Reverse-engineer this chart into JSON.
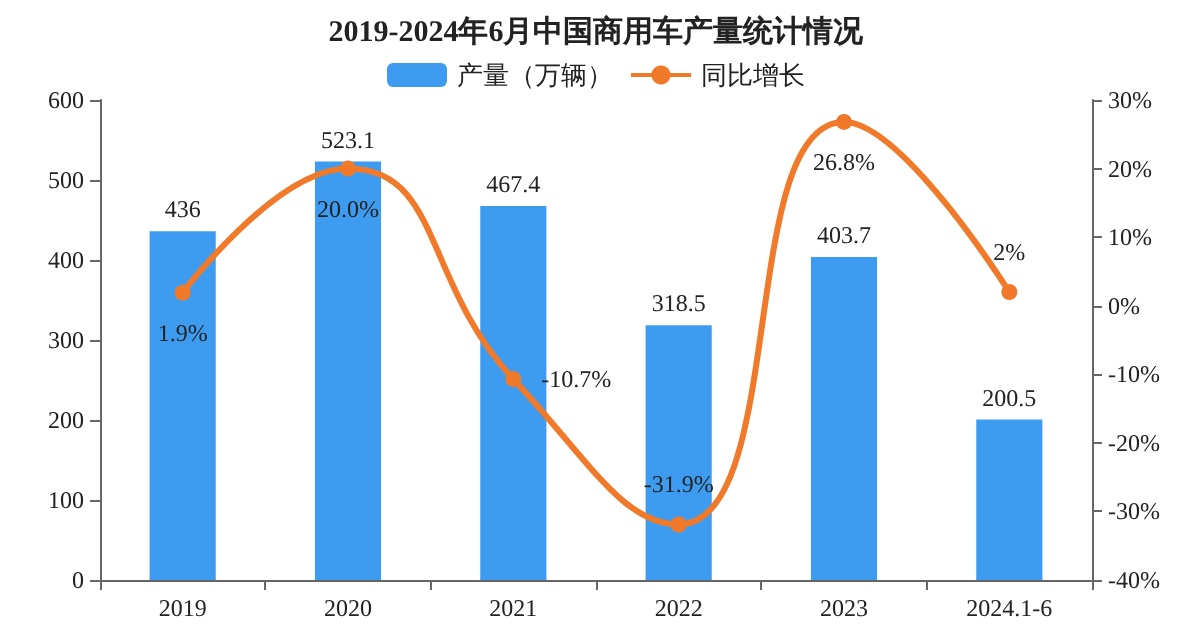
{
  "chart_data": {
    "type": "bar",
    "title": "2019-2024年6月中国商用车产量统计情况",
    "categories": [
      "2019",
      "2020",
      "2021",
      "2022",
      "2023",
      "2024.1-6"
    ],
    "series": [
      {
        "name": "产量（万辆）",
        "color": "#3d9cf0",
        "values": [
          436,
          523.1,
          467.4,
          318.5,
          403.7,
          200.5
        ],
        "data_labels": true
      },
      {
        "name": "同比增长",
        "type": "line",
        "axis": "y2",
        "color": "#f07a2a",
        "marker": "circle",
        "values": [
          1.9,
          20.0,
          -10.7,
          -31.9,
          26.8,
          2
        ],
        "value_labels": [
          "1.9%",
          "20.0%",
          "-10.7%",
          "-31.9%",
          "26.8%",
          "2%"
        ]
      }
    ],
    "ylim": [
      0,
      600
    ],
    "yticks": [
      0,
      100,
      200,
      300,
      400,
      500,
      600
    ],
    "y2lim": [
      -40,
      30
    ],
    "y2ticks": [
      {
        "value": -40,
        "label": "-40%"
      },
      {
        "value": -30,
        "label": "-30%"
      },
      {
        "value": -20,
        "label": "-20%"
      },
      {
        "value": -10,
        "label": "-10%"
      },
      {
        "value": 0,
        "label": "0%"
      },
      {
        "value": 10,
        "label": "10%"
      },
      {
        "value": 20,
        "label": "20%"
      },
      {
        "value": 30,
        "label": "30%"
      }
    ],
    "grid": false,
    "legend": "top"
  }
}
